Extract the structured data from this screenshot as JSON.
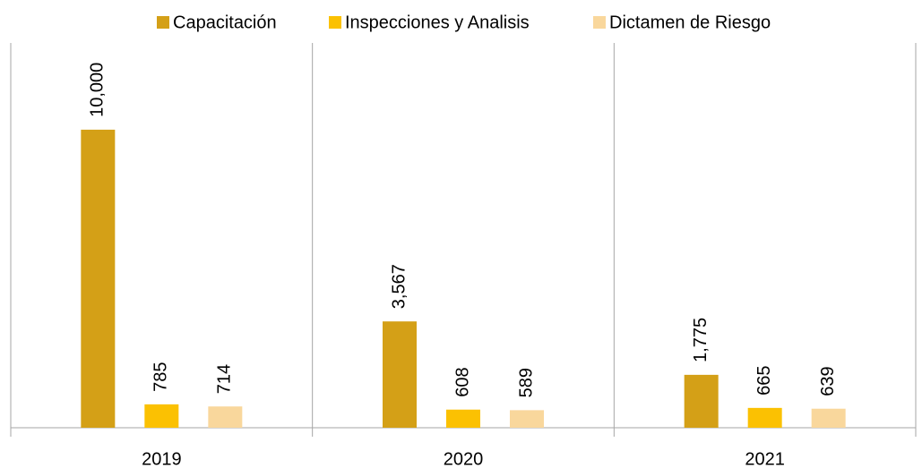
{
  "chart_data": {
    "type": "bar",
    "categories": [
      "2019",
      "2020",
      "2021"
    ],
    "series": [
      {
        "name": "Capacitación",
        "color": "#d4a017",
        "values": [
          10000,
          3567,
          1775
        ],
        "value_labels": [
          "10,000",
          "3,567",
          "1,775"
        ]
      },
      {
        "name": "Inspecciones y Analisis",
        "color": "#fbc102",
        "values": [
          785,
          608,
          665
        ]
      },
      {
        "name": "Dictamen de Riesgo",
        "color": "#f9d79c",
        "values": [
          714,
          589,
          639
        ]
      }
    ],
    "ylim": [
      0,
      13000
    ],
    "legend": "top"
  }
}
